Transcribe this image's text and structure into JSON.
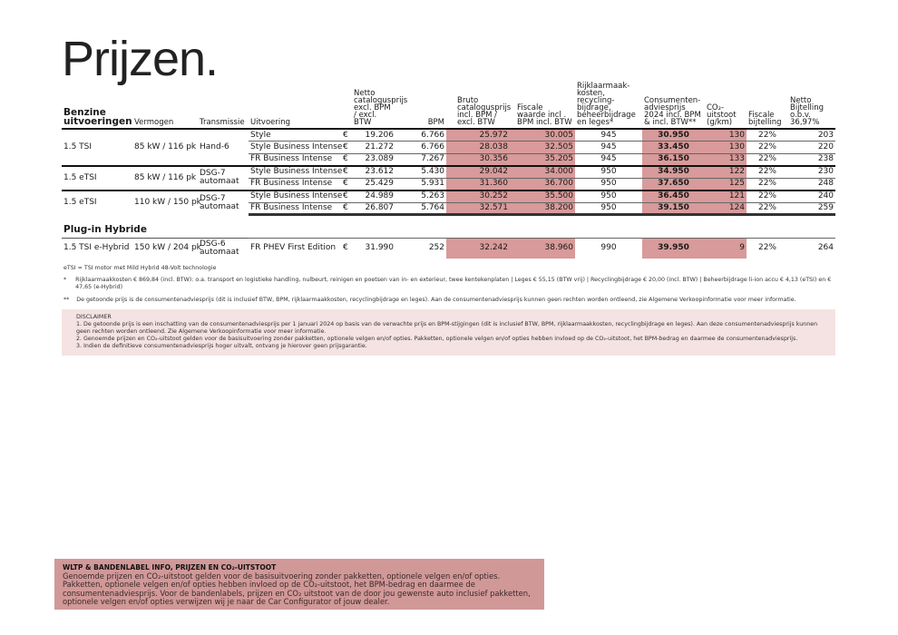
{
  "title": "Prijzen.",
  "headers": {
    "section": "Benzine uitvoeringen",
    "vermogen": "Vermogen",
    "transmissie": "Transmissie",
    "uitvoering": "Uitvoering",
    "netto": "Netto catalogusprijs excl. BPM / excl. BTW",
    "bpm": "BPM",
    "bruto": "Bruto catalogusprijs incl. BPM / excl. BTW",
    "fiscale_waarde": "Fiscale waarde incl . BPM incl. BTW",
    "rijklaar": "Rijklaarmaak-kosten, recycling-bijdrage, beheerbijdrage en leges*",
    "consument": "Consumenten-adviesprijs 2024 incl. BPM & incl. BTW**",
    "co2": "CO₂-uitstoot (g/km)",
    "bijtelling": "Fiscale bijtelling",
    "netto_bijtelling": "Netto Bijtelling o.b.v. 36,97%"
  },
  "currency": "€",
  "benzine_rows": [
    {
      "motor": "1.5 TSI",
      "vermogen": "85 kW / 116 pk",
      "transmissie": "Hand-6",
      "uitvoering": "Style",
      "netto": "19.206",
      "bpm": "6.766",
      "bruto": "25.972",
      "fiscaal": "30.005",
      "rijklaar": "945",
      "consument": "30.950",
      "co2": "130",
      "bijtelling": "22%",
      "netto_bijtelling": "203"
    },
    {
      "motor": "",
      "vermogen": "",
      "transmissie": "",
      "uitvoering": "Style Business Intense",
      "netto": "21.272",
      "bpm": "6.766",
      "bruto": "28.038",
      "fiscaal": "32.505",
      "rijklaar": "945",
      "consument": "33.450",
      "co2": "130",
      "bijtelling": "22%",
      "netto_bijtelling": "220"
    },
    {
      "motor": "",
      "vermogen": "",
      "transmissie": "",
      "uitvoering": "FR Business Intense",
      "netto": "23.089",
      "bpm": "7.267",
      "bruto": "30.356",
      "fiscaal": "35.205",
      "rijklaar": "945",
      "consument": "36.150",
      "co2": "133",
      "bijtelling": "22%",
      "netto_bijtelling": "238"
    },
    {
      "motor": "1.5 eTSI",
      "vermogen": "85 kW / 116 pk",
      "transmissie": "DSG-7 automaat",
      "uitvoering": "Style Business Intense",
      "netto": "23.612",
      "bpm": "5.430",
      "bruto": "29.042",
      "fiscaal": "34.000",
      "rijklaar": "950",
      "consument": "34.950",
      "co2": "122",
      "bijtelling": "22%",
      "netto_bijtelling": "230"
    },
    {
      "motor": "",
      "vermogen": "",
      "transmissie": "",
      "uitvoering": "FR Business Intense",
      "netto": "25.429",
      "bpm": "5.931",
      "bruto": "31.360",
      "fiscaal": "36.700",
      "rijklaar": "950",
      "consument": "37.650",
      "co2": "125",
      "bijtelling": "22%",
      "netto_bijtelling": "248"
    },
    {
      "motor": "1.5 eTSI",
      "vermogen": "110 kW / 150 pk",
      "transmissie": "DSG-7 automaat",
      "uitvoering": "Style Business Intense",
      "netto": "24.989",
      "bpm": "5.263",
      "bruto": "30.252",
      "fiscaal": "35.500",
      "rijklaar": "950",
      "consument": "36.450",
      "co2": "121",
      "bijtelling": "22%",
      "netto_bijtelling": "240"
    },
    {
      "motor": "",
      "vermogen": "",
      "transmissie": "",
      "uitvoering": "FR Business Intense",
      "netto": "26.807",
      "bpm": "5.764",
      "bruto": "32.571",
      "fiscaal": "38.200",
      "rijklaar": "950",
      "consument": "39.150",
      "co2": "124",
      "bijtelling": "22%",
      "netto_bijtelling": "259"
    }
  ],
  "hybrid_section": "Plug-in Hybride",
  "hybrid_row": {
    "motor": "1.5 TSI e-Hybrid",
    "vermogen": "150 kW / 204 pk",
    "transmissie": "DSG-6 automaat",
    "uitvoering": "FR PHEV First Edition",
    "netto": "31.990",
    "bpm": "252",
    "bruto": "32.242",
    "fiscaal": "38.960",
    "rijklaar": "990",
    "consument": "39.950",
    "co2": "9",
    "bijtelling": "22%",
    "netto_bijtelling": "264"
  },
  "notes": {
    "etsi": "eTSI = TSI motor met Mild Hybrid 48-Volt technologie",
    "star_mark": "*",
    "star": "Rijklaarmaakkosten € 869,84 (incl. BTW): o.a. transport en logistieke handling, nulbeurt, reinigen en poetsen van in- en exterieur, twee kentekenplaten | Leges € 55,15 (BTW vrij) | Recyclingbijdrage € 20,00 (incl. BTW) | Beheerbijdrage li-ion accu € 4,13 (eTSI) en € 47,65 (e-Hybrid)",
    "dstar_mark": "**",
    "dstar": "De getoonde prijs is de consumentenadviesprijs (dit is inclusief BTW, BPM, rijklaarmaakkosten, recyclingbijdrage en leges). Aan de consumentenadviesprijs kunnen geen rechten worden ontleend, zie Algemene Verkoopinformatie voor meer informatie."
  },
  "disclaimer": {
    "title": "DISCLAIMER",
    "items": [
      "1. De getoonde prijs is een inschatting van de consumentenadviesprijs per 1 januari 2024 op basis van de verwachte prijs en BPM-stijgingen (dit is inclusief BTW, BPM, rijklaarmaakkosten, recyclingbijdrage en leges). Aan deze consumentenadviesprijs kunnen geen rechten worden ontleend. Zie Algemene Verkoopinformatie voor meer informatie.",
      "2. Genoemde prijzen en CO₂-uitstoot gelden voor de basisuitvoering zonder pakketten, optionele velgen en/of opties. Pakketten, optionele velgen en/of opties hebben invloed op de CO₂-uitstoot, het BPM-bedrag en daarmee de consumentenadviesprijs.",
      "3. Indien de definitieve consumentenadviesprijs hoger uitvalt, ontvang je hierover geen prijsgarantie."
    ]
  },
  "wltp": {
    "title": "WLTP & BANDENLABEL INFO, PRIJZEN EN CO₂-UITSTOOT",
    "text": "Genoemde prijzen en CO₂-uitstoot gelden voor de basisuitvoering zonder pakketten, optionele velgen en/of opties. Pakketten, optionele velgen en/of opties hebben invloed op de CO₂-uitstoot, het BPM-bedrag en daarmee de consumentenadviesprijs. Voor de bandenlabels, prijzen en CO₂ uitstoot van de door jou gewenste auto inclusief pakketten, optionele velgen en/of opties verwijzen wij je naar de Car Configurator of jouw dealer."
  },
  "colors": {
    "highlight": "#d89a9a",
    "disclaimer_bg": "#f4e3e2",
    "wltp_bg": "#d19898"
  }
}
